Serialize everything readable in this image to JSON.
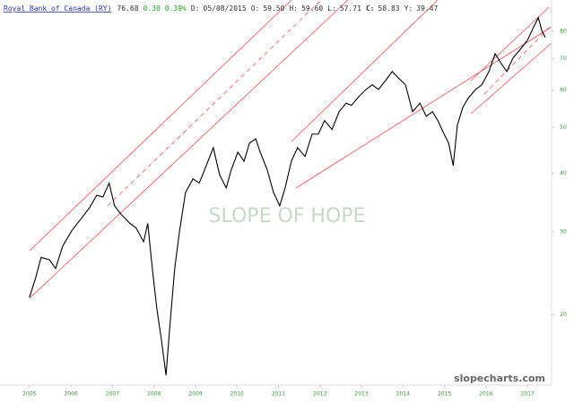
{
  "chart_data": {
    "type": "line",
    "title": "Royal Bank of Canada (RY)",
    "last": "76.68",
    "change": "0.30",
    "change_pct": "0.39%",
    "quote": [
      {
        "label": "D:",
        "value": "05/08/2015"
      },
      {
        "label": "O:",
        "value": "59.50"
      },
      {
        "label": "H:",
        "value": "59.60"
      },
      {
        "label": "L:",
        "value": "57.71"
      },
      {
        "label": "C:",
        "value": "58.83"
      },
      {
        "label": "Y:",
        "value": "39.47"
      }
    ],
    "watermark": "SLOPE OF HOPE",
    "source": "slopecharts.com",
    "color": "#000000",
    "log_y": true,
    "x": [
      2005.0,
      2005.15,
      2005.28,
      2005.48,
      2005.63,
      2005.8,
      2006.02,
      2006.23,
      2006.45,
      2006.62,
      2006.77,
      2006.92,
      2007.05,
      2007.21,
      2007.42,
      2007.57,
      2007.75,
      2007.85,
      2007.96,
      2008.07,
      2008.18,
      2008.29,
      2008.39,
      2008.5,
      2008.61,
      2008.76,
      2008.94,
      2009.09,
      2009.26,
      2009.43,
      2009.58,
      2009.74,
      2009.86,
      2010.02,
      2010.17,
      2010.3,
      2010.45,
      2010.56,
      2010.73,
      2010.88,
      2011.03,
      2011.16,
      2011.31,
      2011.46,
      2011.64,
      2011.81,
      2011.96,
      2012.11,
      2012.29,
      2012.46,
      2012.63,
      2012.76,
      2012.94,
      2013.11,
      2013.26,
      2013.41,
      2013.58,
      2013.74,
      2013.91,
      2014.06,
      2014.23,
      2014.41,
      2014.56,
      2014.71,
      2014.84,
      2014.99,
      2015.1,
      2015.21,
      2015.31,
      2015.44,
      2015.57,
      2015.75,
      2015.9,
      2016.07,
      2016.22,
      2016.35,
      2016.5,
      2016.65,
      2016.83,
      2017.0,
      2017.15,
      2017.26,
      2017.35,
      2017.43
    ],
    "values": [
      21.8,
      24.0,
      26.5,
      26.2,
      25.1,
      28.0,
      30.2,
      31.9,
      33.8,
      35.9,
      35.6,
      38.1,
      34.1,
      32.7,
      31.3,
      30.6,
      28.6,
      31.3,
      25.1,
      20.6,
      17.7,
      14.9,
      19.3,
      25.1,
      29.9,
      36.4,
      38.9,
      38.1,
      41.5,
      45.3,
      39.7,
      37.2,
      40.6,
      44.3,
      42.4,
      46.3,
      47.3,
      44.3,
      40.6,
      36.4,
      34.1,
      37.2,
      42.4,
      45.3,
      43.4,
      48.4,
      48.4,
      51.7,
      49.5,
      54.0,
      56.3,
      55.7,
      58.2,
      60.2,
      61.6,
      60.2,
      62.9,
      65.7,
      63.4,
      61.6,
      54.0,
      56.3,
      52.8,
      54.0,
      51.7,
      48.4,
      46.3,
      41.5,
      50.6,
      55.1,
      57.7,
      60.2,
      61.6,
      65.7,
      71.7,
      68.7,
      65.7,
      70.2,
      73.3,
      76.6,
      81.8,
      85.5,
      80.0,
      77.6
    ],
    "xlim": [
      2004.29,
      2017.58
    ],
    "xticks": [
      2005,
      2006,
      2007,
      2008,
      2009,
      2010,
      2011,
      2012,
      2013,
      2014,
      2015,
      2016,
      2017
    ],
    "ylim": [
      14.2,
      93.2
    ],
    "yticks": [
      20,
      30,
      40,
      50,
      60,
      70,
      80
    ]
  }
}
